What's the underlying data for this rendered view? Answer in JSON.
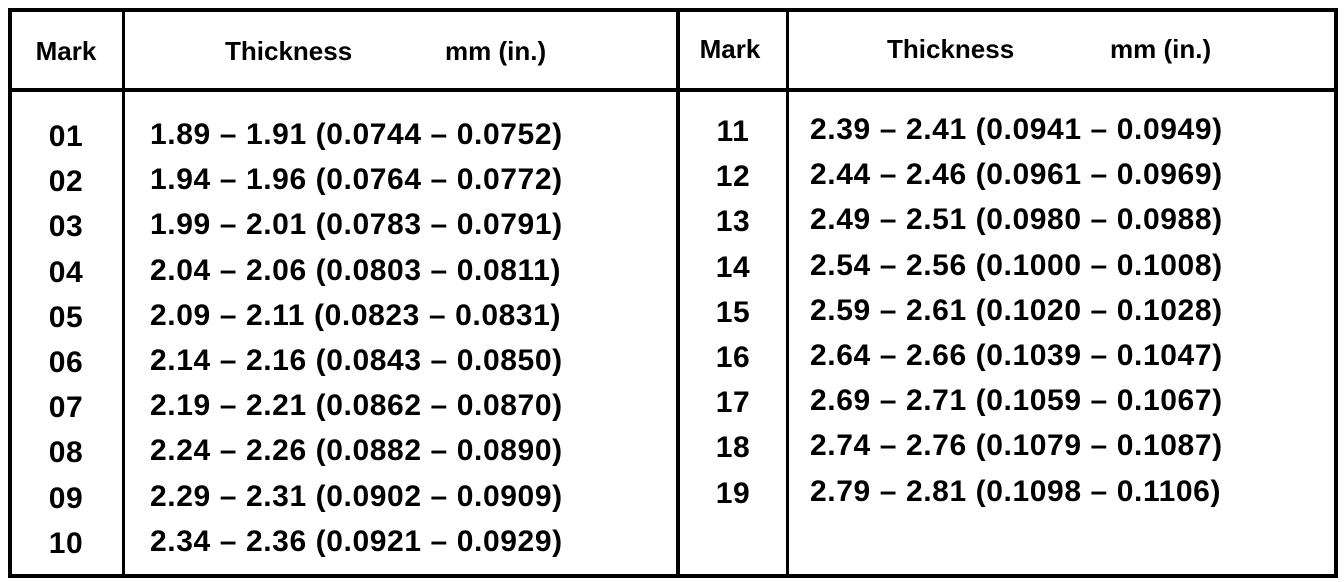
{
  "table": {
    "header": {
      "mark": "Mark",
      "thickness": "Thickness",
      "unit": "mm (in.)"
    },
    "left_rows": [
      [
        "01",
        "1.89 – 1.91 (0.0744 – 0.0752)"
      ],
      [
        "02",
        "1.94 – 1.96 (0.0764 – 0.0772)"
      ],
      [
        "03",
        "1.99 – 2.01 (0.0783 – 0.0791)"
      ],
      [
        "04",
        "2.04 – 2.06 (0.0803 – 0.0811)"
      ],
      [
        "05",
        "2.09 – 2.11 (0.0823 – 0.0831)"
      ],
      [
        "06",
        "2.14 – 2.16 (0.0843 – 0.0850)"
      ],
      [
        "07",
        "2.19 – 2.21 (0.0862 – 0.0870)"
      ],
      [
        "08",
        "2.24 – 2.26 (0.0882 – 0.0890)"
      ],
      [
        "09",
        "2.29 – 2.31 (0.0902 – 0.0909)"
      ],
      [
        "10",
        "2.34 – 2.36 (0.0921 – 0.0929)"
      ]
    ],
    "right_rows": [
      [
        "11",
        "2.39 – 2.41 (0.0941 – 0.0949)"
      ],
      [
        "12",
        "2.44 – 2.46 (0.0961 – 0.0969)"
      ],
      [
        "13",
        "2.49 – 2.51 (0.0980 – 0.0988)"
      ],
      [
        "14",
        "2.54 – 2.56 (0.1000 – 0.1008)"
      ],
      [
        "15",
        "2.59 – 2.61 (0.1020 – 0.1028)"
      ],
      [
        "16",
        "2.64 – 2.66 (0.1039 – 0.1047)"
      ],
      [
        "17",
        "2.69 – 2.71 (0.1059 – 0.1067)"
      ],
      [
        "18",
        "2.74 – 2.76 (0.1079 – 0.1087)"
      ],
      [
        "19",
        "2.79 – 2.81 (0.1098 – 0.1106)"
      ]
    ]
  }
}
